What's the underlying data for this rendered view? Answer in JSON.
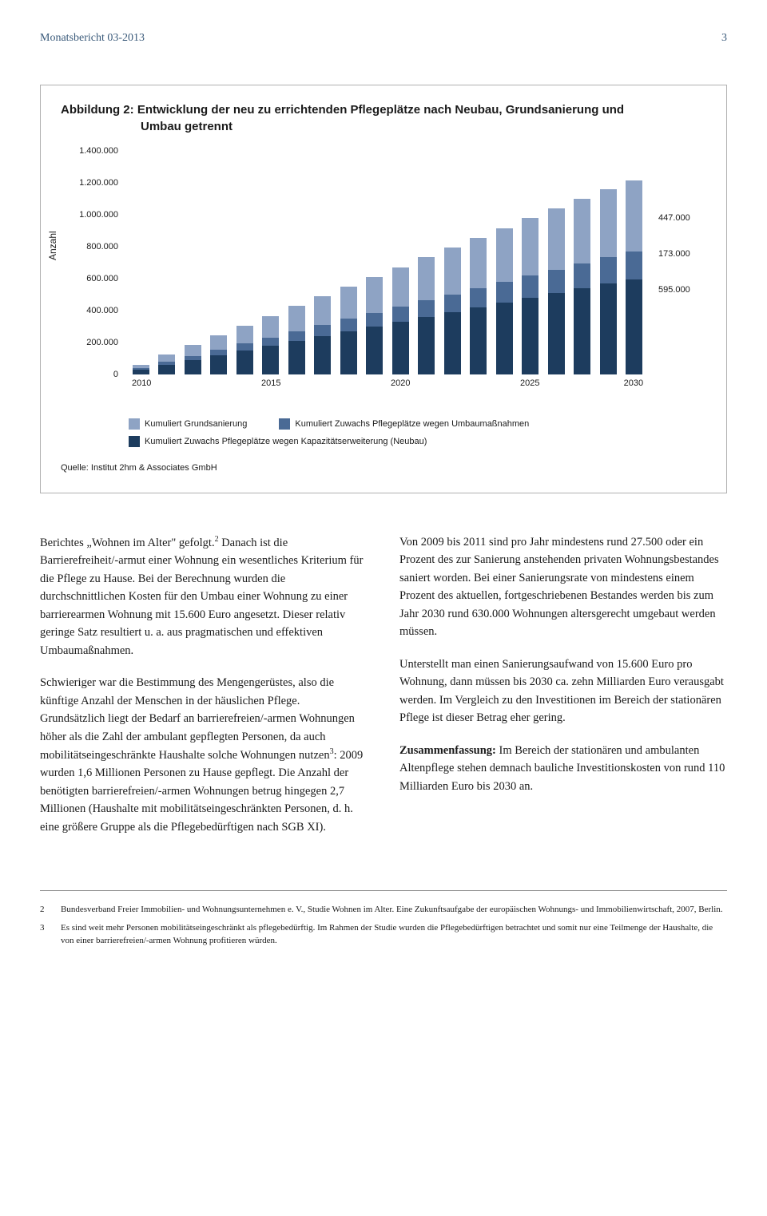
{
  "header": {
    "title": "Monatsbericht 03-2013",
    "page": "3"
  },
  "chart": {
    "title_line1": "Abbildung 2: Entwicklung der neu zu errichtenden Pflegeplätze nach Neubau, Grundsanierung und",
    "title_line2": "Umbau getrennt",
    "y_label": "Anzahl",
    "y_ticks": [
      "1.400.000",
      "1.200.000",
      "1.000.000",
      "800.000",
      "600.000",
      "400.000",
      "200.000",
      "0"
    ],
    "y_max": 1400000,
    "x_labels": [
      "2010",
      "2015",
      "2020",
      "2025",
      "2030"
    ],
    "right_labels": [
      {
        "text": "447.000",
        "pos_pct": 28
      },
      {
        "text": "173.000",
        "pos_pct": 44
      },
      {
        "text": "595.000",
        "pos_pct": 60
      }
    ],
    "colors": {
      "grundsanierung": "#8ea3c4",
      "umbau": "#4a6a95",
      "neubau": "#1d3c5e"
    },
    "legend": {
      "l1": "Kumuliert Grundsanierung",
      "l2": "Kumuliert Zuwachs Pflegeplätze wegen Umbaumaßnahmen",
      "l3": "Kumuliert Zuwachs Pflegeplätze wegen Kapazitätserweiterung (Neubau)"
    },
    "source": "Quelle: Institut 2hm & Associates GmbH",
    "bars": [
      {
        "neubau": 30000,
        "umbau": 10000,
        "grund": 22000
      },
      {
        "neubau": 60000,
        "umbau": 18000,
        "grund": 45000
      },
      {
        "neubau": 90000,
        "umbau": 26000,
        "grund": 67000
      },
      {
        "neubau": 120000,
        "umbau": 35000,
        "grund": 90000
      },
      {
        "neubau": 150000,
        "umbau": 44000,
        "grund": 112000
      },
      {
        "neubau": 180000,
        "umbau": 52000,
        "grund": 135000
      },
      {
        "neubau": 210000,
        "umbau": 61000,
        "grund": 157000
      },
      {
        "neubau": 240000,
        "umbau": 70000,
        "grund": 180000
      },
      {
        "neubau": 270000,
        "umbau": 78000,
        "grund": 202000
      },
      {
        "neubau": 300000,
        "umbau": 87000,
        "grund": 225000
      },
      {
        "neubau": 330000,
        "umbau": 95000,
        "grund": 247000
      },
      {
        "neubau": 360000,
        "umbau": 104000,
        "grund": 270000
      },
      {
        "neubau": 390000,
        "umbau": 112000,
        "grund": 292000
      },
      {
        "neubau": 420000,
        "umbau": 121000,
        "grund": 315000
      },
      {
        "neubau": 450000,
        "umbau": 130000,
        "grund": 337000
      },
      {
        "neubau": 480000,
        "umbau": 138000,
        "grund": 360000
      },
      {
        "neubau": 510000,
        "umbau": 147000,
        "grund": 382000
      },
      {
        "neubau": 540000,
        "umbau": 155000,
        "grund": 405000
      },
      {
        "neubau": 570000,
        "umbau": 164000,
        "grund": 427000
      },
      {
        "neubau": 595000,
        "umbau": 173000,
        "grund": 447000
      }
    ]
  },
  "body": {
    "left": {
      "p1a": "Berichtes „Wohnen im Alter\" gefolgt.",
      "p1b": " Danach ist die Barrierefreiheit/-armut einer Wohnung ein wesentliches Kriterium für die Pflege zu Hause. Bei der Berechnung wurden die durchschnittlichen Kosten für den Umbau einer Wohnung zu einer barrierearmen Wohnung mit 15.600 Euro angesetzt. Dieser relativ geringe Satz resultiert u. a. aus pragmatischen und effektiven Umbaumaßnahmen.",
      "p2a": "Schwieriger war die Bestimmung des Mengengerüstes, also die künftige Anzahl der Menschen in der häuslichen Pflege. Grundsätzlich liegt der Bedarf an barrierefreien/-armen Wohnungen höher als die Zahl der ambulant gepflegten Personen, da auch mobilitätseingeschränkte Haushalte solche Wohnungen nutzen",
      "p2b": ": 2009 wurden 1,6 Millionen Personen zu Hause gepflegt. Die Anzahl der benötigten barrierefreien/-armen Wohnungen betrug hingegen 2,7 Millionen (Haushalte mit mobilitätseingeschränkten Personen, d. h. eine größere Gruppe als die Pflegebedürftigen nach SGB XI)."
    },
    "right": {
      "p1": "Von 2009 bis 2011 sind pro Jahr mindestens rund 27.500 oder ein Prozent des zur Sanierung anstehenden privaten Wohnungsbestandes saniert worden. Bei einer Sanierungsrate von mindestens einem Prozent des aktuellen, fortgeschriebenen Bestandes werden bis zum Jahr 2030 rund 630.000 Wohnungen altersgerecht umgebaut werden müssen.",
      "p2": "Unterstellt man einen Sanierungsaufwand von 15.600 Euro pro Wohnung, dann müssen bis 2030 ca. zehn Milliarden Euro verausgabt werden. Im Vergleich zu den Investitionen im Bereich der stationären Pflege ist dieser Betrag eher gering.",
      "p3a": "Zusammenfassung:",
      "p3b": " Im Bereich der stationären und ambulanten Altenpflege stehen demnach bauliche Investitionskosten von rund 110 Milliarden Euro bis 2030 an."
    }
  },
  "footnotes": {
    "f2": {
      "num": "2",
      "text": "Bundesverband Freier Immobilien- und Wohnungsunternehmen e. V., Studie Wohnen im Alter. Eine Zukunftsaufgabe der europäischen Wohnungs- und Immobilienwirtschaft, 2007, Berlin."
    },
    "f3": {
      "num": "3",
      "text": "Es sind weit mehr Personen mobilitätseingeschränkt als pflegebedürftig. Im Rahmen der Studie wurden die Pflegebedürftigen betrachtet und somit nur eine Teilmenge der Haushalte, die von einer barrierefreien/-armen Wohnung profitieren würden."
    }
  }
}
